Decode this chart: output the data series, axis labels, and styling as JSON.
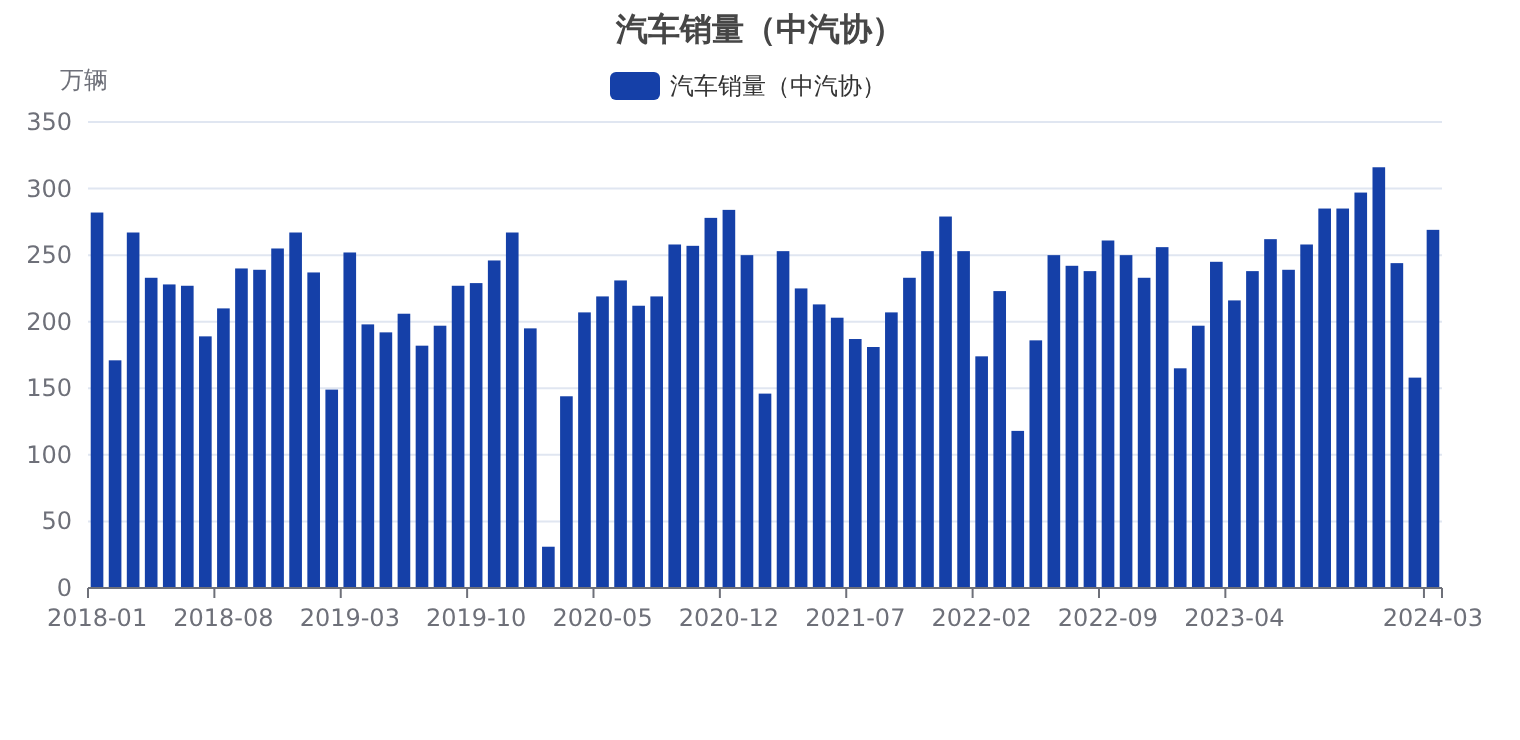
{
  "chart_data": {
    "type": "bar",
    "title": "汽车销量（中汽协）",
    "ylabel": "万辆",
    "legend": "top",
    "grid": "y",
    "categories": [
      "2018-01",
      null,
      null,
      null,
      null,
      null,
      null,
      "2018-08",
      null,
      null,
      null,
      null,
      null,
      null,
      "2019-03",
      null,
      null,
      null,
      null,
      null,
      null,
      "2019-10",
      null,
      null,
      null,
      null,
      null,
      null,
      "2020-05",
      null,
      null,
      null,
      null,
      null,
      null,
      "2020-12",
      null,
      null,
      null,
      null,
      null,
      null,
      "2021-07",
      null,
      null,
      null,
      null,
      null,
      null,
      "2022-02",
      null,
      null,
      null,
      null,
      null,
      null,
      "2022-09",
      null,
      null,
      null,
      null,
      null,
      null,
      "2023-04",
      null,
      null,
      null,
      null,
      null,
      null,
      null,
      null,
      null,
      null,
      "2024-03"
    ],
    "series": [
      {
        "name": "汽车销量（中汽协）",
        "color": "#1540a8",
        "values": [
          282,
          171,
          267,
          233,
          228,
          227,
          189,
          210,
          240,
          239,
          255,
          267,
          237,
          149,
          252,
          198,
          192,
          206,
          182,
          197,
          227,
          229,
          246,
          267,
          195,
          31,
          144,
          207,
          219,
          231,
          212,
          219,
          258,
          257,
          278,
          284,
          250,
          146,
          253,
          225,
          213,
          203,
          187,
          181,
          207,
          233,
          253,
          279,
          253,
          174,
          223,
          118,
          186,
          250,
          242,
          238,
          261,
          250,
          233,
          256,
          165,
          197,
          245,
          216,
          238,
          262,
          239,
          258,
          285,
          285,
          297,
          316,
          244,
          158,
          269
        ]
      }
    ],
    "ylim": [
      0,
      350
    ],
    "yticks": [
      0,
      50,
      100,
      150,
      200,
      250,
      300,
      350
    ]
  }
}
